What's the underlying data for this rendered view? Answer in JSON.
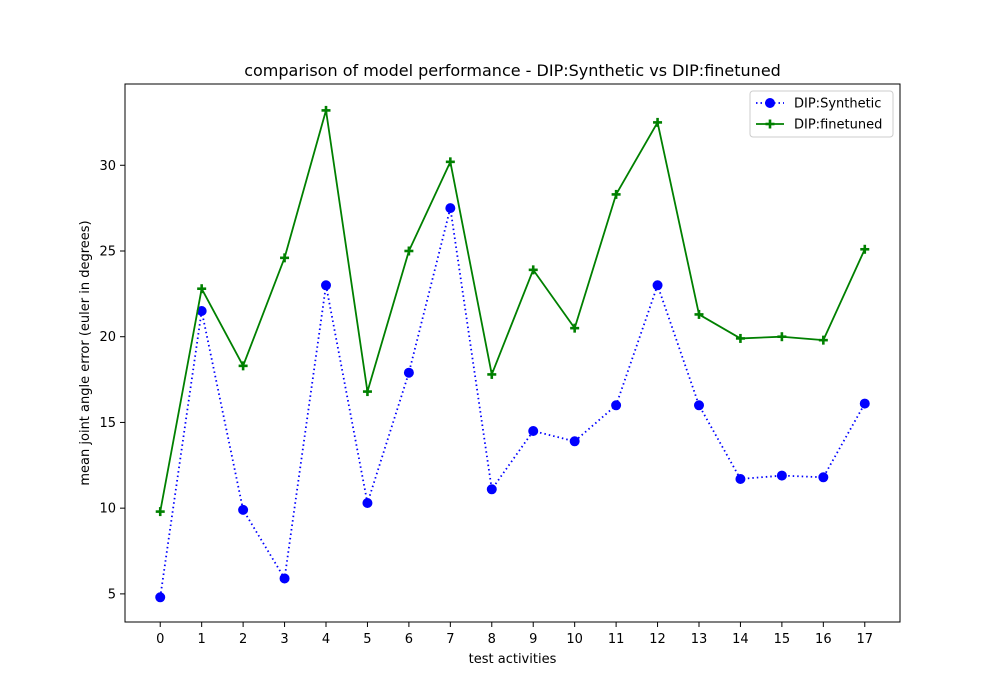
{
  "chart_data": {
    "type": "line",
    "title": "comparison of model performance - DIP:Synthetic vs DIP:finetuned",
    "xlabel": "test activities",
    "ylabel": "mean joint angle error (euler in degrees)",
    "x": [
      0,
      1,
      2,
      3,
      4,
      5,
      6,
      7,
      8,
      9,
      10,
      11,
      12,
      13,
      14,
      15,
      16,
      17
    ],
    "xticks": [
      "0",
      "1",
      "2",
      "3",
      "4",
      "5",
      "6",
      "7",
      "8",
      "9",
      "10",
      "11",
      "12",
      "13",
      "14",
      "15",
      "16",
      "17"
    ],
    "yticks": [
      5,
      10,
      15,
      20,
      25,
      30
    ],
    "xlim": [
      -0.85,
      17.85
    ],
    "ylim": [
      3.36,
      34.74
    ],
    "grid": false,
    "legend_position": "upper-right",
    "series": [
      {
        "name": "DIP:Synthetic",
        "color": "#0000ff",
        "line_style": "dotted",
        "marker": "circle",
        "values": [
          4.8,
          21.5,
          9.9,
          5.9,
          23.0,
          10.3,
          17.9,
          27.5,
          11.1,
          14.5,
          13.9,
          16.0,
          23.0,
          16.0,
          11.7,
          11.9,
          11.8,
          16.1
        ]
      },
      {
        "name": "DIP:finetuned",
        "color": "#008000",
        "line_style": "solid",
        "marker": "plus",
        "values": [
          9.8,
          22.8,
          18.3,
          24.6,
          33.2,
          16.8,
          25.0,
          30.2,
          17.8,
          23.9,
          20.5,
          28.3,
          32.5,
          21.3,
          19.9,
          20.0,
          19.8,
          25.1
        ]
      }
    ]
  }
}
